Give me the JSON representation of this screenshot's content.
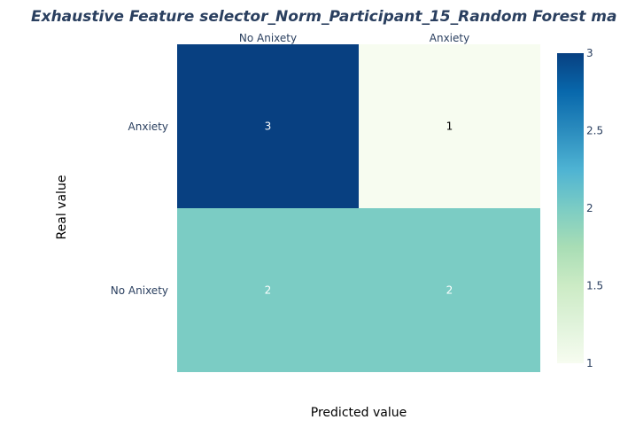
{
  "chart_data": {
    "type": "heatmap",
    "title": "Exhaustive Feature selector_Norm_Participant_15_Random Forest ma",
    "xlabel": "Predicted value",
    "ylabel": "Real value",
    "x_categories": [
      "No Anixety",
      "Anxiety"
    ],
    "y_categories": [
      "Anxiety",
      "No Anixety"
    ],
    "z": [
      [
        3,
        1
      ],
      [
        2,
        2
      ]
    ],
    "zrange": [
      1,
      3
    ],
    "colorscale": "GnBu",
    "colorbar_ticks": [
      "1",
      "1.5",
      "2",
      "2.5",
      "3"
    ],
    "colorbar_tick_values": [
      1,
      1.5,
      2,
      2.5,
      3
    ],
    "x_axis_side": "top",
    "colorbar_position": "right"
  }
}
